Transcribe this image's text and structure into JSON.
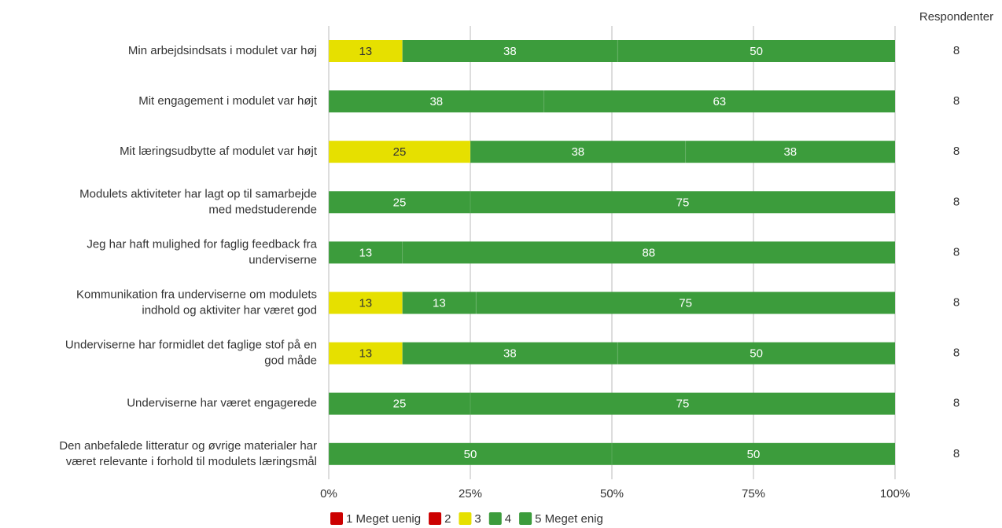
{
  "chart_data": {
    "type": "stacked-bar-horizontal",
    "categories": [
      [
        "Min arbejdsindsats i modulet var høj"
      ],
      [
        "Mit engagement i modulet var højt"
      ],
      [
        "Mit læringsudbytte af modulet var højt"
      ],
      [
        "Modulets aktiviteter har lagt op til samarbejde",
        "med medstuderende"
      ],
      [
        "Jeg har haft mulighed for faglig feedback fra",
        "underviserne"
      ],
      [
        "Kommunikation fra underviserne om modulets",
        "indhold og aktiviter har været god"
      ],
      [
        "Underviserne har formidlet det faglige stof på en",
        "god måde"
      ],
      [
        "Underviserne har været engagerede"
      ],
      [
        "Den anbefalede litteratur og øvrige materialer har",
        "været relevante i forhold til modulets læringsmål"
      ]
    ],
    "series": [
      {
        "name": "1 Meget uenig",
        "color": "#cc0000",
        "values": [
          null,
          null,
          null,
          null,
          null,
          null,
          null,
          null,
          null
        ]
      },
      {
        "name": "2",
        "color": "#cc0000",
        "values": [
          null,
          null,
          null,
          null,
          null,
          null,
          null,
          null,
          null
        ]
      },
      {
        "name": "3",
        "color": "#e6e000",
        "values": [
          13,
          null,
          25,
          null,
          null,
          13,
          13,
          null,
          null
        ]
      },
      {
        "name": "4",
        "color": "#3c9c3c",
        "values": [
          38,
          38,
          38,
          25,
          13,
          13,
          38,
          25,
          50
        ]
      },
      {
        "name": "5 Meget enig",
        "color": "#3c9c3c",
        "values": [
          50,
          63,
          38,
          75,
          88,
          75,
          50,
          75,
          50
        ]
      }
    ],
    "respondents_label": "Respondenter",
    "respondents": [
      8,
      8,
      8,
      8,
      8,
      8,
      8,
      8,
      8
    ],
    "xlim": [
      0,
      100
    ],
    "xticks": [
      {
        "value": 0,
        "label": "0%"
      },
      {
        "value": 25,
        "label": "25%"
      },
      {
        "value": 50,
        "label": "50%"
      },
      {
        "value": 75,
        "label": "75%"
      },
      {
        "value": 100,
        "label": "100%"
      }
    ],
    "grid": true,
    "legend": "bottom"
  }
}
